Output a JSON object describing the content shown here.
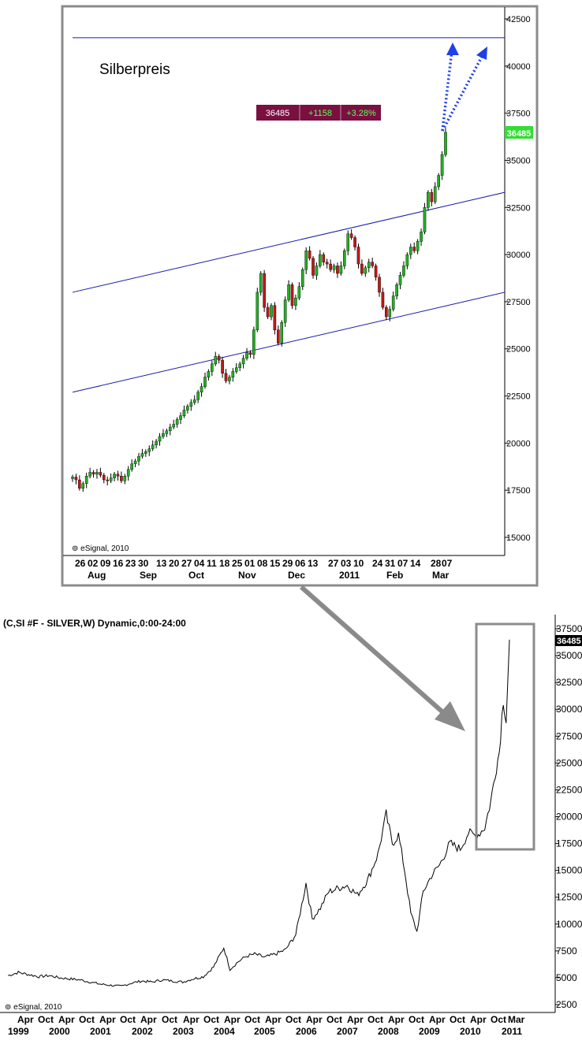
{
  "chart_data": [
    {
      "type": "candlestick",
      "title": "Silberpreis",
      "xlabel": "",
      "ylabel": "",
      "ylim": [
        14000,
        43000
      ],
      "y_ticks": [
        "42500",
        "40000",
        "37500",
        "35000",
        "32500",
        "30000",
        "27500",
        "25000",
        "22500",
        "20000",
        "17500",
        "15000"
      ],
      "x_tick_labels_day": [
        "26",
        "02",
        "09",
        "16",
        "23",
        "30",
        "13",
        "20",
        "27",
        "04",
        "11",
        "18",
        "25",
        "01",
        "08",
        "15",
        "29",
        "06",
        "13",
        "27",
        "03",
        "10",
        "24",
        "31",
        "07",
        "14",
        "28",
        "07"
      ],
      "x_tick_labels_month": [
        "Aug",
        "Sep",
        "Oct",
        "Nov",
        "Dec",
        "2011",
        "Feb",
        "Mar"
      ],
      "last_price_label": "36485",
      "quote_box": {
        "last": "36485",
        "change": "+1158",
        "change_pct": "+3.28%"
      },
      "watermark": "eSignal, 2010",
      "closes": [
        18200,
        18050,
        17600,
        17850,
        18250,
        18450,
        18350,
        18450,
        18300,
        18050,
        18000,
        18150,
        18350,
        18250,
        18000,
        18250,
        18600,
        18900,
        19050,
        19300,
        19450,
        19550,
        19700,
        19900,
        20100,
        20350,
        20500,
        20650,
        20850,
        21000,
        21250,
        21450,
        21750,
        21950,
        22150,
        22300,
        22700,
        23000,
        23500,
        23800,
        24200,
        24600,
        24400,
        23700,
        23300,
        23500,
        23800,
        24000,
        24200,
        24500,
        24800,
        24700,
        26000,
        28000,
        29000,
        27200,
        26700,
        27300,
        26000,
        25300,
        26400,
        27600,
        28400,
        27300,
        27700,
        28300,
        29200,
        30200,
        29800,
        28900,
        29400,
        30000,
        29600,
        29500,
        29200,
        29400,
        29000,
        29400,
        30200,
        31100,
        30900,
        30400,
        29500,
        29000,
        29300,
        29600,
        29400,
        28800,
        28000,
        27200,
        26700,
        27100,
        27800,
        28400,
        28900,
        29400,
        30000,
        30400,
        30200,
        30700,
        31200,
        32500,
        33300,
        32800,
        33600,
        34200,
        35300,
        36485
      ],
      "trendlines": [
        {
          "x": [
            0,
            1
          ],
          "y": [
            41500,
            41500
          ]
        },
        {
          "x": [
            0,
            1
          ],
          "y": [
            28000,
            33300
          ]
        },
        {
          "x": [
            0,
            1
          ],
          "y": [
            22700,
            28000
          ]
        }
      ]
    },
    {
      "type": "line",
      "title": "(C,SI #F - SILVER,W) Dynamic,0:00-24:00",
      "xlabel": "",
      "ylabel": "",
      "ylim": [
        2500,
        38000
      ],
      "y_ticks": [
        "37500",
        "35000",
        "32500",
        "30000",
        "27500",
        "25000",
        "22500",
        "20000",
        "17500",
        "15000",
        "12500",
        "10000",
        "7500",
        "5000",
        "2500"
      ],
      "last_price_label": "36485",
      "watermark": "eSignal, 2010",
      "x_tick_labels_month": [
        "Apr",
        "Oct",
        "Apr",
        "Oct",
        "Apr",
        "Oct",
        "Apr",
        "Oct",
        "Apr",
        "Oct",
        "Apr",
        "Oct",
        "Apr",
        "Oct",
        "Apr",
        "Oct",
        "Apr",
        "Oct",
        "Apr",
        "Oct",
        "Apr",
        "Oct",
        "Apr",
        "Oct",
        "Mar"
      ],
      "x_tick_labels_year": [
        "1999",
        "2000",
        "2001",
        "2002",
        "2003",
        "2004",
        "2005",
        "2006",
        "2007",
        "2008",
        "2009",
        "2010",
        "2011"
      ],
      "series": [
        {
          "x": [
            1999.0,
            1999.25,
            1999.5,
            1999.75,
            2000.0,
            2000.25,
            2000.5,
            2000.75,
            2001.0,
            2001.25,
            2001.5,
            2001.75,
            2002.0,
            2002.25,
            2002.5,
            2002.75,
            2003.0,
            2003.25,
            2003.5,
            2003.75,
            2004.0,
            2004.25,
            2004.4,
            2004.6,
            2004.8,
            2005.0,
            2005.25,
            2005.5,
            2005.75,
            2006.0,
            2006.25,
            2006.4,
            2006.6,
            2006.8,
            2007.0,
            2007.25,
            2007.5,
            2007.75,
            2008.0,
            2008.2,
            2008.35,
            2008.5,
            2008.65,
            2008.8,
            2008.95,
            2009.1,
            2009.3,
            2009.5,
            2009.75,
            2010.0,
            2010.2,
            2010.4,
            2010.6,
            2010.75,
            2010.85,
            2010.95,
            2011.05,
            2011.12,
            2011.2
          ],
          "y": [
            5200,
            5500,
            5300,
            5100,
            5200,
            5000,
            4900,
            4800,
            4600,
            4400,
            4300,
            4200,
            4500,
            4700,
            4600,
            4800,
            4700,
            4600,
            4900,
            5100,
            6000,
            7800,
            5800,
            6500,
            7000,
            7200,
            6900,
            7200,
            7600,
            9000,
            13800,
            10500,
            11500,
            13000,
            13300,
            13600,
            12700,
            14100,
            16500,
            20200,
            17500,
            18300,
            15000,
            11000,
            9300,
            13000,
            14500,
            15500,
            17500,
            17000,
            18500,
            18200,
            19000,
            21500,
            24000,
            26000,
            31000,
            29000,
            36485
          ]
        }
      ]
    }
  ]
}
